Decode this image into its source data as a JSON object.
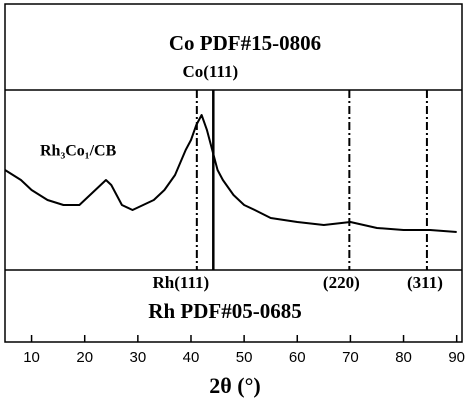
{
  "chart_data": {
    "type": "line",
    "x_label": "2θ (°)",
    "xlim": [
      5,
      91
    ],
    "xticks": [
      10,
      20,
      30,
      40,
      50,
      60,
      70,
      80,
      90
    ],
    "ylim": [
      0,
      180
    ],
    "series": [
      {
        "name": "Rh₃Co₁/CB",
        "color": "#000000",
        "x": [
          5,
          8,
          10,
          13,
          16,
          19,
          22,
          24,
          25,
          27,
          29,
          31,
          33,
          35,
          37,
          39,
          40,
          41,
          42,
          43,
          44,
          45,
          46,
          48,
          50,
          52,
          55,
          60,
          65,
          70,
          75,
          80,
          85,
          90
        ],
        "values": [
          100,
          90,
          80,
          70,
          65,
          65,
          80,
          90,
          85,
          65,
          60,
          65,
          70,
          80,
          95,
          120,
          130,
          145,
          155,
          140,
          120,
          100,
          90,
          75,
          65,
          60,
          52,
          48,
          45,
          48,
          42,
          40,
          40,
          38
        ]
      }
    ],
    "co_reference": {
      "title": "Co  PDF#15-0806",
      "peaks": [
        {
          "label": "Co(111)",
          "value": 44.2
        }
      ]
    },
    "rh_reference": {
      "title": "Rh  PDF#05-0685",
      "peaks": [
        {
          "label": "Rh(111)",
          "value": 41.1
        },
        {
          "label": "(220)",
          "value": 69.8
        },
        {
          "label": "(311)",
          "value": 84.4
        }
      ]
    }
  }
}
